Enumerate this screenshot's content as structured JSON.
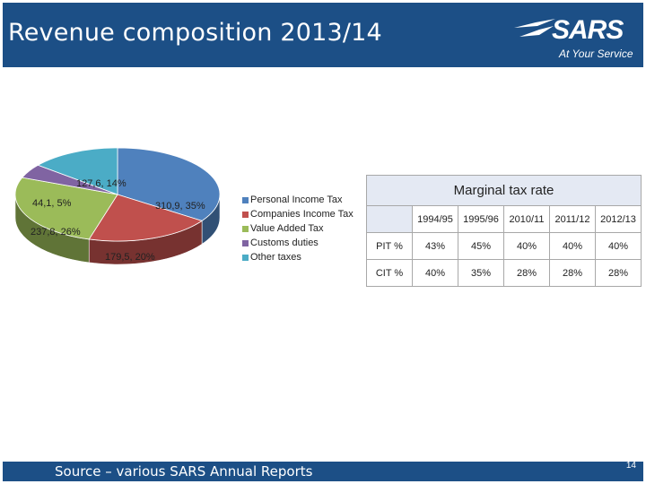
{
  "slide": {
    "title": "Revenue composition 2013/14",
    "logo_text": "SARS",
    "logo_tagline": "At Your Service",
    "source": "Source – various SARS Annual Reports",
    "page_number": "14"
  },
  "colors": {
    "header": "#1c4f86",
    "personal_income_tax": "#4f81bd",
    "companies_income_tax": "#c0504d",
    "value_added_tax": "#9bbb59",
    "customs_duties": "#8064a2",
    "other_taxes": "#4bacc6"
  },
  "chart_data": [
    {
      "type": "pie",
      "title": "",
      "series": [
        {
          "values": [
            310.9,
            179.5,
            237.8,
            44.1,
            127.6
          ],
          "percent": [
            35,
            20,
            26,
            5,
            14
          ]
        }
      ],
      "categories": [
        "Personal Income Tax",
        "Companies Income Tax",
        "Value Added Tax",
        "Customs duties",
        "Other taxes"
      ],
      "data_labels": [
        "310,9, 35%",
        "179,5, 20%",
        "237,8, 26%",
        "44,1, 5%",
        "127,6, 14%"
      ],
      "legend_position": "right",
      "style": "3d"
    },
    {
      "type": "table",
      "title": "Marginal tax rate",
      "columns": [
        "1994/95",
        "1995/96",
        "2010/11",
        "2011/12",
        "2012/13"
      ],
      "rows": [
        {
          "label": "PIT %",
          "values": [
            "43%",
            "45%",
            "40%",
            "40%",
            "40%"
          ]
        },
        {
          "label": "CIT %",
          "values": [
            "40%",
            "35%",
            "28%",
            "28%",
            "28%"
          ]
        }
      ]
    }
  ]
}
